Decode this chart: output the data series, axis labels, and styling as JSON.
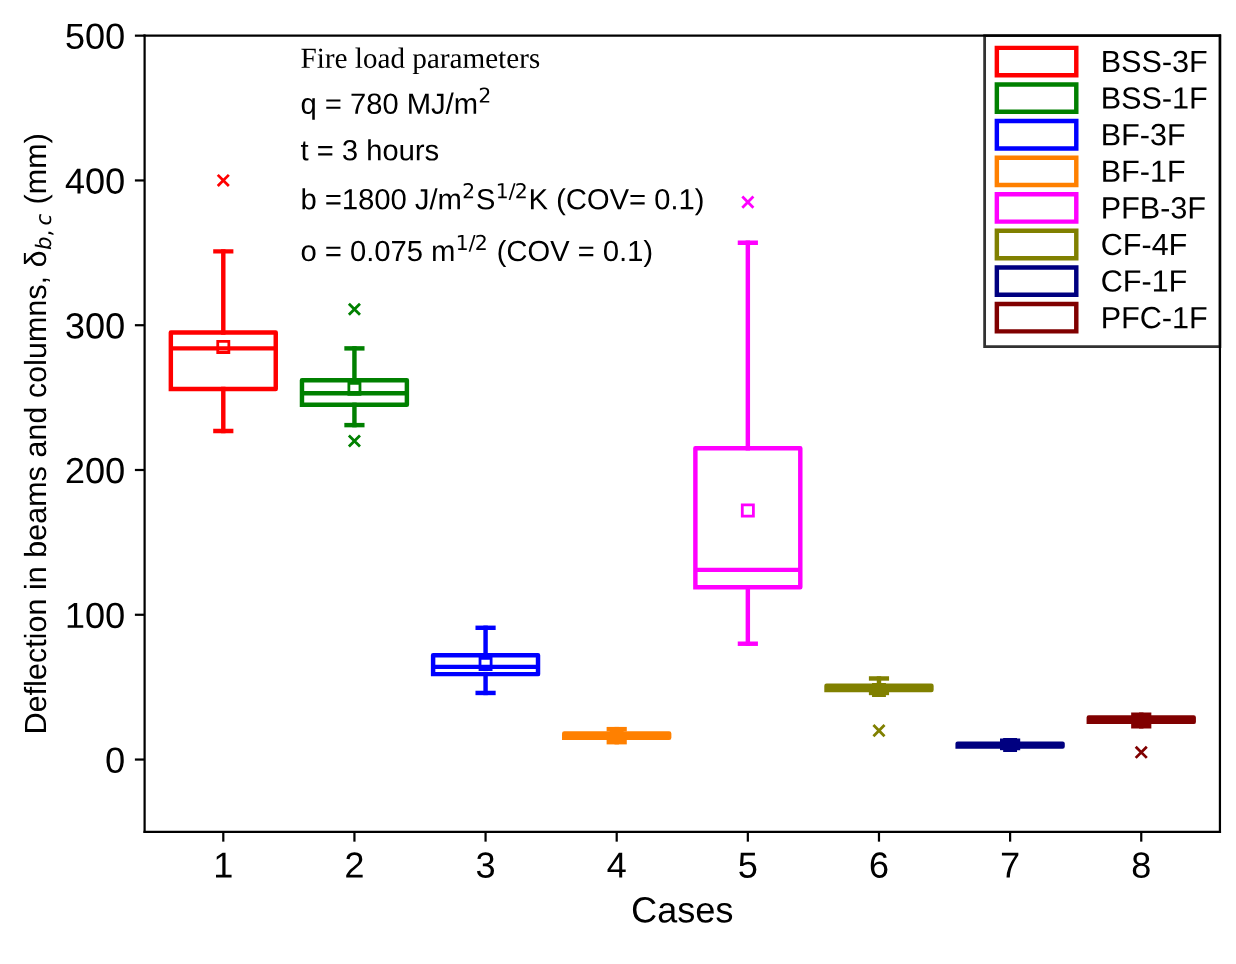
{
  "chart_data": {
    "type": "box",
    "xlabel": "Cases",
    "ylabel": "Deflection in beams and columns, δ$_{b,c}$ (mm)",
    "categories": [
      "1",
      "2",
      "3",
      "4",
      "5",
      "6",
      "7",
      "8"
    ],
    "ylim": [
      -50,
      500
    ],
    "yticks": [
      0,
      100,
      200,
      300,
      400,
      500
    ],
    "grid": false,
    "legend": "top right",
    "annotations": [
      "Fire load parameters",
      "q = 780 MJ/m$^{2}$",
      "t = 3 hours",
      "b =1800 J/m$^{2}$S$^{1/2}$K (COV= 0.1)",
      "o = 0.075 m$^{1/2}$ (COV = 0.1)"
    ],
    "series": [
      {
        "name": "BSS-3F",
        "color": "#ff0000",
        "boxes": [
          {
            "low": 227,
            "q1": 256,
            "median": 284,
            "q3": 295,
            "high": 351,
            "mean": 285,
            "outliers": [
              400
            ]
          },
          null,
          null,
          null,
          null,
          null,
          null,
          null
        ]
      },
      {
        "name": "BSS-1F",
        "color": "#008000",
        "boxes": [
          null,
          {
            "low": 231,
            "q1": 245,
            "median": 253,
            "q3": 262,
            "high": 284,
            "mean": 256,
            "outliers": [
              311,
              220
            ]
          },
          null,
          null,
          null,
          null,
          null,
          null
        ]
      },
      {
        "name": "BF-3F",
        "color": "#0000ff",
        "boxes": [
          null,
          null,
          {
            "low": 46,
            "q1": 59,
            "median": 64,
            "q3": 72,
            "high": 91,
            "mean": 66
          },
          null,
          null,
          null,
          null,
          null
        ]
      },
      {
        "name": "BF-1F",
        "color": "#ff8000",
        "boxes": [
          null,
          null,
          null,
          {
            "low": 12,
            "q1": 15,
            "median": 16,
            "q3": 18,
            "high": 21,
            "mean": 16
          },
          null,
          null,
          null,
          null
        ]
      },
      {
        "name": "PFB-3F",
        "color": "#ff00ff",
        "boxes": [
          null,
          null,
          null,
          null,
          {
            "low": 80,
            "q1": 119,
            "median": 131,
            "q3": 215,
            "high": 357,
            "mean": 172,
            "outliers": [
              385
            ]
          },
          null,
          null,
          null
        ]
      },
      {
        "name": "CF-4F",
        "color": "#808000",
        "boxes": [
          null,
          null,
          null,
          null,
          null,
          {
            "low": 46,
            "q1": 48,
            "median": 49,
            "q3": 51,
            "high": 56,
            "mean": 48,
            "outliers": [
              20
            ]
          },
          null,
          null
        ]
      },
      {
        "name": "CF-1F",
        "color": "#000080",
        "boxes": [
          null,
          null,
          null,
          null,
          null,
          null,
          {
            "low": 8,
            "q1": 9,
            "median": 10,
            "q3": 11,
            "high": 13,
            "mean": 10
          },
          null
        ]
      },
      {
        "name": "PFC-1F",
        "color": "#800000",
        "boxes": [
          null,
          null,
          null,
          null,
          null,
          null,
          null,
          {
            "low": 23,
            "q1": 26,
            "median": 27,
            "q3": 29,
            "high": 31,
            "mean": 27,
            "outliers": [
              5
            ]
          }
        ]
      }
    ]
  }
}
